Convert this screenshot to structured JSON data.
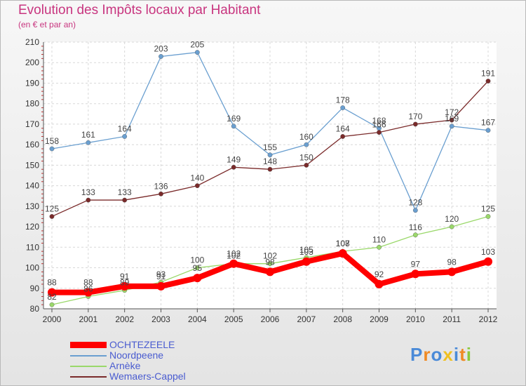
{
  "title": "Evolution des Impôts locaux par Habitant",
  "subtitle": "(en € et par an)",
  "logo": {
    "text": "Proxiti",
    "colors": [
      "#4a8ad8",
      "#f08a24",
      "#4a8ad8",
      "#f0c020",
      "#4a8ad8",
      "#f08a24",
      "#8ac83a"
    ]
  },
  "chart_data": {
    "type": "line",
    "x": [
      2000,
      2001,
      2002,
      2003,
      2004,
      2005,
      2006,
      2007,
      2008,
      2009,
      2010,
      2011,
      2012
    ],
    "ylim": [
      80,
      210
    ],
    "yticks": [
      80,
      90,
      100,
      110,
      120,
      130,
      140,
      150,
      160,
      170,
      180,
      190,
      200,
      210
    ],
    "grid": true,
    "series": [
      {
        "name": "OCHTEZEELE",
        "color": "#ff0000",
        "emphasis": true,
        "values": [
          88,
          88,
          91,
          91,
          95,
          102,
          98,
          103,
          107,
          92,
          97,
          98,
          103
        ]
      },
      {
        "name": "Noordpeene",
        "color": "#6a9fd0",
        "values": [
          158,
          161,
          164,
          203,
          205,
          169,
          155,
          160,
          178,
          168,
          128,
          169,
          167
        ]
      },
      {
        "name": "Arnèke",
        "color": "#9ad86a",
        "values": [
          82,
          86,
          89,
          93,
          100,
          102,
          102,
          105,
          108,
          110,
          116,
          120,
          125
        ]
      },
      {
        "name": "Wemaers-Cappel",
        "color": "#7a2a2a",
        "values": [
          125,
          133,
          133,
          136,
          140,
          149,
          148,
          150,
          164,
          166,
          170,
          172,
          191
        ]
      }
    ]
  }
}
